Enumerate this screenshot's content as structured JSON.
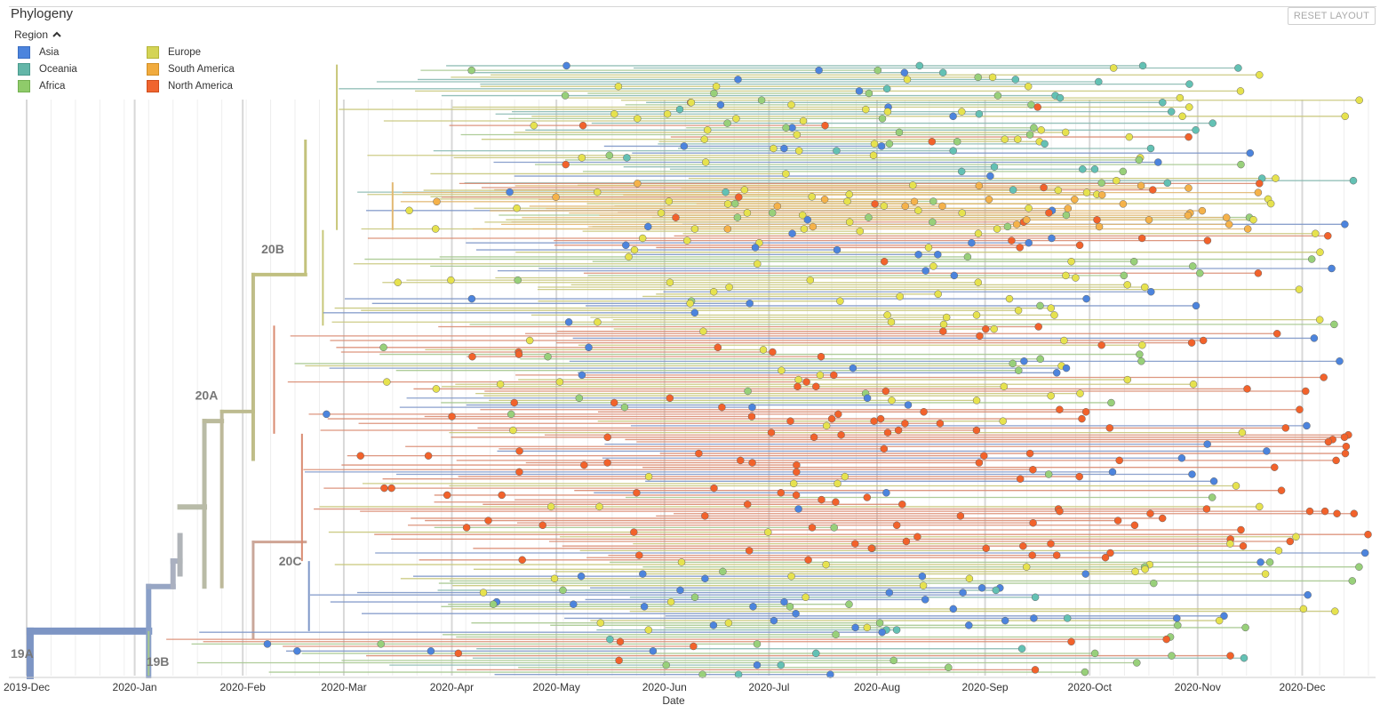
{
  "panel": {
    "title": "Phylogeny",
    "reset_label": "RESET LAYOUT"
  },
  "legend": {
    "title": "Region",
    "items": [
      {
        "label": "Asia",
        "color": "#4c84dd"
      },
      {
        "label": "Europe",
        "color": "#d4d455"
      },
      {
        "label": "Oceania",
        "color": "#63b6a8"
      },
      {
        "label": "South America",
        "color": "#f1ab3e"
      },
      {
        "label": "Africa",
        "color": "#8fcb6a"
      },
      {
        "label": "North America",
        "color": "#f0652f"
      }
    ]
  },
  "chart_data": {
    "type": "scatter",
    "title": "Phylogeny",
    "xlabel": "Date",
    "ylabel": "",
    "x_domain": [
      "2019-12-01",
      "2020-12-20"
    ],
    "x_ticks": [
      "2019-Dec",
      "2020-Jan",
      "2020-Feb",
      "2020-Mar",
      "2020-Apr",
      "2020-May",
      "2020-Jun",
      "2020-Jul",
      "2020-Aug",
      "2020-Sep",
      "2020-Oct",
      "2020-Nov",
      "2020-Dec"
    ],
    "series_colors": {
      "Asia": "#4c84dd",
      "Europe": "#e6e24e",
      "Oceania": "#63c1b4",
      "South America": "#f5b24a",
      "Africa": "#98d07a",
      "North America": "#f2622b"
    },
    "branch_colors": {
      "Asia": "#7e97c8",
      "Europe": "#c8c77a",
      "Oceania": "#89b9b1",
      "South America": "#e2b873",
      "Africa": "#a6c88f",
      "North America": "#d98b71"
    },
    "clades": [
      {
        "label": "19A",
        "date": "2019-12-01",
        "pos": 0.99
      },
      {
        "label": "19B",
        "date": "2020-01-12",
        "pos": 1.05
      },
      {
        "label": "20A",
        "date": "2020-01-26",
        "pos": 0.575
      },
      {
        "label": "20B",
        "date": "2020-02-14",
        "pos": 0.345
      },
      {
        "label": "20C",
        "date": "2020-02-19",
        "pos": 0.835
      }
    ],
    "groups": [
      {
        "name": "20B-upper",
        "start": "2020-02-28",
        "end": "2020-12-18",
        "top": 0.04,
        "bottom": 0.3,
        "base": "Europe",
        "mix": {
          "Europe": 0.45,
          "Africa": 0.2,
          "Oceania": 0.15,
          "Asia": 0.12,
          "North America": 0.08
        }
      },
      {
        "name": "20B-southamerica",
        "start": "2020-03-15",
        "end": "2020-11-25",
        "top": 0.225,
        "bottom": 0.3,
        "base": "South America",
        "mix": {
          "South America": 0.7,
          "Europe": 0.15,
          "North America": 0.15
        }
      },
      {
        "name": "20B-lower",
        "start": "2020-02-24",
        "end": "2020-12-18",
        "top": 0.3,
        "bottom": 0.45,
        "base": "Europe",
        "mix": {
          "Europe": 0.55,
          "Asia": 0.22,
          "Africa": 0.13,
          "North America": 0.1
        }
      },
      {
        "name": "20A-northamerica",
        "start": "2020-02-10",
        "end": "2020-12-16",
        "top": 0.45,
        "bottom": 0.62,
        "base": "North America",
        "mix": {
          "North America": 0.5,
          "Europe": 0.25,
          "Africa": 0.15,
          "Asia": 0.1
        }
      },
      {
        "name": "20C",
        "start": "2020-02-18",
        "end": "2020-12-20",
        "top": 0.62,
        "bottom": 0.82,
        "base": "North America",
        "mix": {
          "North America": 0.75,
          "Europe": 0.1,
          "Asia": 0.08,
          "Africa": 0.07
        }
      },
      {
        "name": "20A-asia",
        "start": "2020-02-20",
        "end": "2020-12-18",
        "top": 0.82,
        "bottom": 0.93,
        "base": "Asia",
        "mix": {
          "Asia": 0.35,
          "Europe": 0.35,
          "Africa": 0.2,
          "Oceania": 0.1
        }
      },
      {
        "name": "19A-19B",
        "start": "2020-01-05",
        "end": "2020-11-20",
        "top": 0.93,
        "bottom": 1.0,
        "base": "Africa",
        "mix": {
          "Africa": 0.35,
          "Asia": 0.3,
          "North America": 0.2,
          "Oceania": 0.15
        }
      }
    ]
  }
}
